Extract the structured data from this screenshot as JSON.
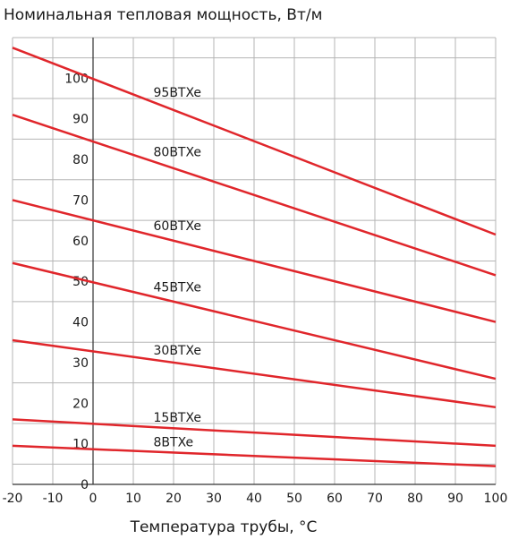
{
  "chart_data": {
    "type": "line",
    "title": "Номинальная тепловая мощность, Вт/м",
    "xlabel": "Температура трубы, °C",
    "ylabel": "",
    "xlim": [
      -20,
      100
    ],
    "ylim": [
      0,
      110
    ],
    "x_ticks": [
      -20,
      -10,
      0,
      10,
      20,
      30,
      40,
      50,
      60,
      70,
      80,
      90,
      100
    ],
    "x_tick_labels": [
      "-20",
      "-10",
      "0",
      "10",
      "20",
      "30",
      "40",
      "50",
      "60",
      "70",
      "80",
      "90",
      "100"
    ],
    "y_ticks": [
      0,
      10,
      20,
      30,
      40,
      50,
      60,
      70,
      80,
      90,
      100
    ],
    "y_tick_labels": [
      "0",
      "10",
      "20",
      "30",
      "40",
      "50",
      "60",
      "70",
      "80",
      "90",
      "100"
    ],
    "grid": true,
    "line_color": "#e0262b",
    "series": [
      {
        "name": "95BTXe",
        "x": [
          -20,
          100
        ],
        "y": [
          107.5,
          61.5
        ],
        "label_at": 15
      },
      {
        "name": "80BTXe",
        "x": [
          -20,
          100
        ],
        "y": [
          91,
          51.5
        ],
        "label_at": 15
      },
      {
        "name": "60BTXe",
        "x": [
          -20,
          100
        ],
        "y": [
          70,
          40
        ],
        "label_at": 15
      },
      {
        "name": "45BTXe",
        "x": [
          -20,
          100
        ],
        "y": [
          54.5,
          26
        ],
        "label_at": 15
      },
      {
        "name": "30BTXe",
        "x": [
          -20,
          100
        ],
        "y": [
          35.5,
          19
        ],
        "label_at": 15
      },
      {
        "name": "15BTXe",
        "x": [
          -20,
          100
        ],
        "y": [
          16,
          9.5
        ],
        "label_at": 15
      },
      {
        "name": "8BTXe",
        "x": [
          -20,
          100
        ],
        "y": [
          9.5,
          4.5
        ],
        "label_at": 15
      }
    ]
  }
}
